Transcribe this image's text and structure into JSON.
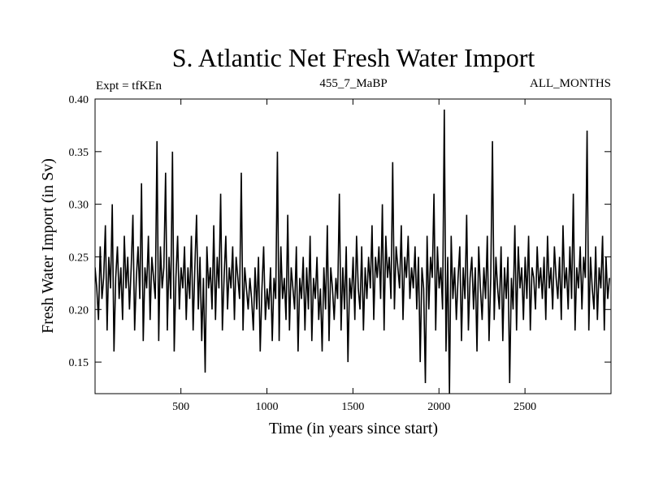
{
  "chart_data": {
    "type": "line",
    "title": "S. Atlantic Net Fresh Water Import",
    "subtitle_left": "Expt = tfKEn",
    "subtitle_center": "455_7_MaBP",
    "subtitle_right": "ALL_MONTHS",
    "xlabel": "Time (in years since start)",
    "ylabel": "Fresh Water Import (in Sv)",
    "xlim": [
      1,
      3000
    ],
    "ylim": [
      0.12,
      0.4
    ],
    "x_ticks": [
      500,
      1000,
      1500,
      2000,
      2500
    ],
    "x_tick_labels": [
      "500",
      "1000",
      "1500",
      "2000",
      "2500"
    ],
    "y_ticks": [
      0.15,
      0.2,
      0.25,
      0.3,
      0.35,
      0.4
    ],
    "y_tick_labels": [
      "0.15",
      "0.20",
      "0.25",
      "0.30",
      "0.35",
      "0.40"
    ],
    "grid": false,
    "line_color": "#000000",
    "series": [
      {
        "x_start": 1,
        "x_step": 10,
        "values": [
          0.24,
          0.22,
          0.19,
          0.26,
          0.21,
          0.23,
          0.28,
          0.18,
          0.25,
          0.22,
          0.3,
          0.16,
          0.23,
          0.26,
          0.21,
          0.24,
          0.19,
          0.27,
          0.22,
          0.25,
          0.2,
          0.24,
          0.29,
          0.18,
          0.23,
          0.26,
          0.21,
          0.32,
          0.17,
          0.24,
          0.22,
          0.27,
          0.19,
          0.25,
          0.23,
          0.21,
          0.36,
          0.17,
          0.26,
          0.22,
          0.24,
          0.33,
          0.18,
          0.25,
          0.21,
          0.35,
          0.16,
          0.23,
          0.27,
          0.2,
          0.24,
          0.22,
          0.26,
          0.19,
          0.24,
          0.21,
          0.27,
          0.18,
          0.24,
          0.29,
          0.2,
          0.25,
          0.17,
          0.23,
          0.14,
          0.26,
          0.22,
          0.24,
          0.2,
          0.28,
          0.19,
          0.25,
          0.22,
          0.31,
          0.18,
          0.23,
          0.27,
          0.2,
          0.24,
          0.22,
          0.26,
          0.19,
          0.25,
          0.23,
          0.21,
          0.33,
          0.18,
          0.24,
          0.22,
          0.2,
          0.23,
          0.21,
          0.18,
          0.24,
          0.2,
          0.25,
          0.16,
          0.22,
          0.26,
          0.19,
          0.22,
          0.2,
          0.24,
          0.17,
          0.23,
          0.21,
          0.35,
          0.17,
          0.26,
          0.21,
          0.23,
          0.19,
          0.29,
          0.18,
          0.24,
          0.22,
          0.2,
          0.26,
          0.16,
          0.23,
          0.21,
          0.25,
          0.18,
          0.24,
          0.2,
          0.27,
          0.17,
          0.23,
          0.21,
          0.25,
          0.19,
          0.22,
          0.16,
          0.24,
          0.2,
          0.28,
          0.17,
          0.24,
          0.22,
          0.19,
          0.23,
          0.21,
          0.31,
          0.18,
          0.24,
          0.2,
          0.26,
          0.15,
          0.23,
          0.21,
          0.25,
          0.19,
          0.27,
          0.22,
          0.2,
          0.26,
          0.18,
          0.24,
          0.21,
          0.25,
          0.22,
          0.28,
          0.19,
          0.25,
          0.23,
          0.26,
          0.21,
          0.3,
          0.18,
          0.27,
          0.23,
          0.25,
          0.21,
          0.34,
          0.2,
          0.26,
          0.24,
          0.22,
          0.28,
          0.19,
          0.25,
          0.23,
          0.27,
          0.21,
          0.24,
          0.22,
          0.26,
          0.2,
          0.25,
          0.15,
          0.24,
          0.22,
          0.13,
          0.27,
          0.2,
          0.25,
          0.23,
          0.31,
          0.18,
          0.26,
          0.22,
          0.24,
          0.2,
          0.39,
          0.16,
          0.25,
          0.12,
          0.27,
          0.21,
          0.24,
          0.19,
          0.23,
          0.26,
          0.17,
          0.24,
          0.21,
          0.29,
          0.18,
          0.23,
          0.25,
          0.2,
          0.24,
          0.16,
          0.26,
          0.22,
          0.19,
          0.24,
          0.21,
          0.27,
          0.17,
          0.23,
          0.36,
          0.19,
          0.25,
          0.22,
          0.2,
          0.26,
          0.17,
          0.24,
          0.21,
          0.25,
          0.13,
          0.23,
          0.2,
          0.28,
          0.18,
          0.26,
          0.22,
          0.24,
          0.19,
          0.25,
          0.21,
          0.27,
          0.18,
          0.24,
          0.23,
          0.2,
          0.26,
          0.22,
          0.24,
          0.21,
          0.25,
          0.19,
          0.27,
          0.22,
          0.24,
          0.2,
          0.26,
          0.23,
          0.21,
          0.25,
          0.19,
          0.28,
          0.22,
          0.24,
          0.2,
          0.26,
          0.21,
          0.31,
          0.18,
          0.24,
          0.22,
          0.26,
          0.2,
          0.25,
          0.23,
          0.37,
          0.18,
          0.25,
          0.22,
          0.2,
          0.26,
          0.19,
          0.24,
          0.22,
          0.27,
          0.18,
          0.25,
          0.21,
          0.23
        ]
      }
    ]
  }
}
